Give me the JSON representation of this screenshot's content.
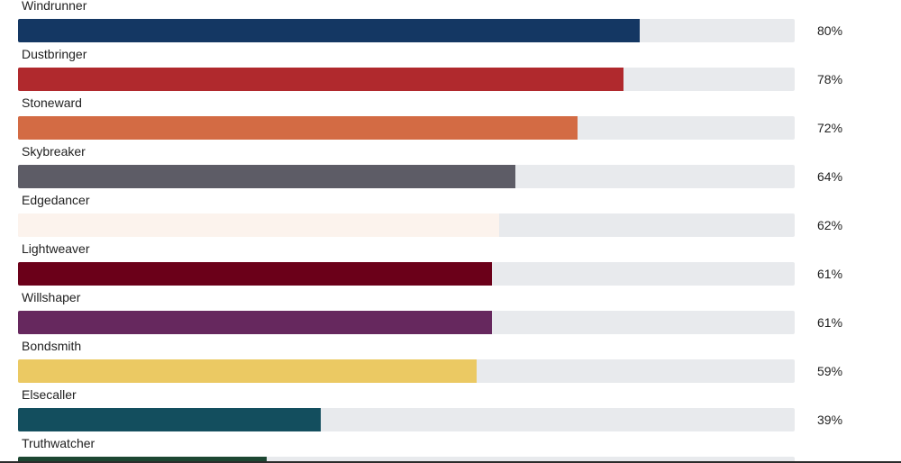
{
  "chart_data": {
    "type": "bar",
    "orientation": "horizontal",
    "xlim": [
      0,
      100
    ],
    "unit": "%",
    "categories": [
      "Windrunner",
      "Dustbringer",
      "Stoneward",
      "Skybreaker",
      "Edgedancer",
      "Lightweaver",
      "Willshaper",
      "Bondsmith",
      "Elsecaller",
      "Truthwatcher"
    ],
    "values": [
      80,
      78,
      72,
      64,
      62,
      61,
      61,
      59,
      39,
      32
    ],
    "value_labels": [
      "80%",
      "78%",
      "72%",
      "64%",
      "62%",
      "61%",
      "61%",
      "59%",
      "39%",
      ""
    ],
    "colors": [
      "#143763",
      "#b0292d",
      "#d36b44",
      "#5d5c66",
      "#fcf3ed",
      "#6b0019",
      "#66285e",
      "#ebc963",
      "#134e5e",
      "#1d4732"
    ],
    "track_color": "#e8eaed"
  }
}
